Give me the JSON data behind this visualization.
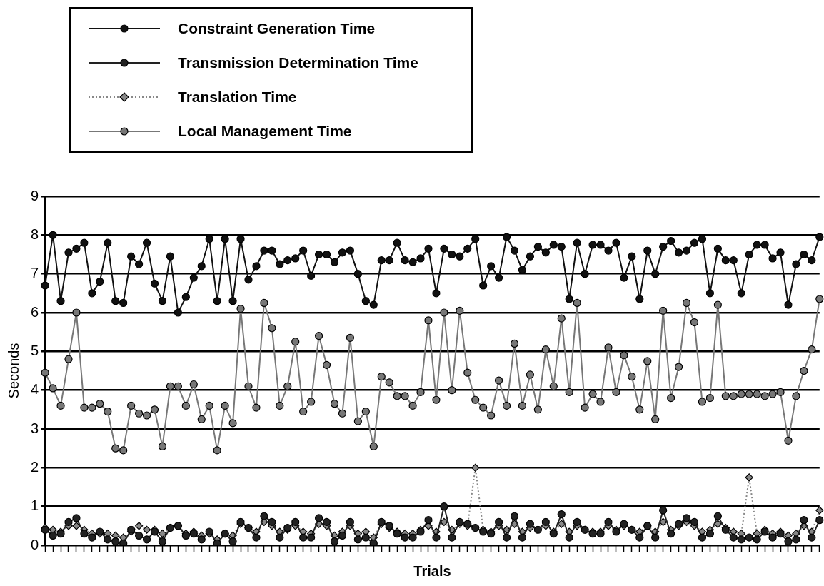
{
  "chart_data": {
    "type": "line",
    "xlabel": "Trials",
    "ylabel": "Seconds",
    "categories": [
      null,
      null,
      null,
      null,
      null,
      null,
      null,
      null,
      null,
      null,
      null,
      null,
      null,
      null,
      null,
      null,
      null,
      null,
      null,
      null,
      null,
      null,
      null,
      null,
      null,
      null,
      null,
      null,
      null,
      null,
      null,
      null,
      null,
      null,
      null,
      null,
      null,
      null,
      null,
      null,
      null,
      null,
      null,
      null,
      null,
      null,
      null,
      null,
      null,
      null,
      null,
      null,
      null,
      null,
      null,
      null,
      null,
      null,
      null,
      null,
      null,
      null,
      null,
      null,
      null,
      null,
      null,
      null,
      null,
      null,
      null,
      null,
      null,
      null,
      null,
      null,
      null,
      null,
      null,
      null,
      null,
      null,
      null,
      null,
      null,
      null,
      null,
      null,
      null,
      null,
      null,
      null,
      null,
      null,
      null,
      null,
      null,
      null,
      null,
      null
    ],
    "series": [
      {
        "name": "Constraint Generation Time",
        "color": "#111111",
        "marker": "circle",
        "line_style": "solid",
        "values": [
          6.7,
          8.0,
          6.3,
          7.55,
          7.65,
          7.8,
          6.5,
          6.8,
          7.8,
          6.3,
          6.25,
          7.45,
          7.25,
          7.8,
          6.75,
          6.3,
          7.45,
          6.0,
          6.4,
          6.9,
          7.2,
          7.9,
          6.3,
          7.9,
          6.3,
          7.9,
          6.85,
          7.2,
          7.6,
          7.6,
          7.25,
          7.35,
          7.4,
          7.6,
          6.95,
          7.5,
          7.5,
          7.3,
          7.55,
          7.6,
          7.0,
          6.3,
          6.2,
          7.35,
          7.35,
          7.8,
          7.35,
          7.3,
          7.4,
          7.65,
          6.5,
          7.65,
          7.5,
          7.45,
          7.65,
          7.9,
          6.7,
          7.2,
          6.9,
          7.95,
          7.6,
          7.1,
          7.45,
          7.7,
          7.55,
          7.75,
          7.7,
          6.35,
          7.8,
          7.0,
          7.75,
          7.75,
          7.6,
          7.8,
          6.9,
          7.45,
          6.35,
          7.6,
          7.0,
          7.7,
          7.85,
          7.55,
          7.6,
          7.8,
          7.9,
          6.5,
          7.65,
          7.35,
          7.35,
          6.5,
          7.5,
          7.75,
          7.75,
          7.4,
          7.55,
          6.2,
          7.25,
          7.5,
          7.35,
          7.95
        ]
      },
      {
        "name": "Transmission Determination Time",
        "color": "#222222",
        "marker": "circle",
        "line_style": "solid",
        "values": [
          0.4,
          0.25,
          0.3,
          0.6,
          0.7,
          0.3,
          0.2,
          0.35,
          0.15,
          0.1,
          0.05,
          0.4,
          0.25,
          0.15,
          0.35,
          0.1,
          0.45,
          0.5,
          0.25,
          0.3,
          0.15,
          0.35,
          0.05,
          0.3,
          0.1,
          0.6,
          0.45,
          0.2,
          0.75,
          0.6,
          0.2,
          0.45,
          0.6,
          0.2,
          0.2,
          0.7,
          0.6,
          0.1,
          0.25,
          0.6,
          0.15,
          0.2,
          0.05,
          0.6,
          0.5,
          0.3,
          0.2,
          0.2,
          0.35,
          0.65,
          0.2,
          1.0,
          0.2,
          0.6,
          0.55,
          0.45,
          0.35,
          0.3,
          0.6,
          0.2,
          0.75,
          0.2,
          0.55,
          0.4,
          0.6,
          0.3,
          0.8,
          0.2,
          0.6,
          0.4,
          0.3,
          0.3,
          0.6,
          0.35,
          0.55,
          0.4,
          0.2,
          0.5,
          0.2,
          0.9,
          0.3,
          0.55,
          0.7,
          0.6,
          0.2,
          0.3,
          0.75,
          0.4,
          0.2,
          0.15,
          0.2,
          0.15,
          0.35,
          0.2,
          0.3,
          0.1,
          0.15,
          0.65,
          0.2,
          0.65
        ]
      },
      {
        "name": "Translation Time",
        "color": "#888888",
        "marker": "diamond",
        "line_style": "dotted",
        "values": [
          0.45,
          0.4,
          0.35,
          0.5,
          0.5,
          0.4,
          0.3,
          0.3,
          0.3,
          0.25,
          0.2,
          0.35,
          0.5,
          0.4,
          0.4,
          0.3,
          0.45,
          0.5,
          0.3,
          0.35,
          0.25,
          0.3,
          0.15,
          0.3,
          0.25,
          0.55,
          0.45,
          0.35,
          0.6,
          0.5,
          0.35,
          0.4,
          0.5,
          0.35,
          0.3,
          0.55,
          0.5,
          0.25,
          0.35,
          0.5,
          0.3,
          0.35,
          0.2,
          0.55,
          0.45,
          0.35,
          0.3,
          0.3,
          0.4,
          0.5,
          0.35,
          0.6,
          0.4,
          0.55,
          0.5,
          2.0,
          0.4,
          0.35,
          0.5,
          0.4,
          0.55,
          0.35,
          0.45,
          0.4,
          0.5,
          0.35,
          0.55,
          0.35,
          0.5,
          0.4,
          0.35,
          0.35,
          0.5,
          0.4,
          0.5,
          0.4,
          0.35,
          0.5,
          0.35,
          0.6,
          0.4,
          0.5,
          0.6,
          0.5,
          0.35,
          0.4,
          0.55,
          0.45,
          0.35,
          0.3,
          1.75,
          0.3,
          0.4,
          0.3,
          0.35,
          0.25,
          0.3,
          0.5,
          0.35,
          0.9
        ]
      },
      {
        "name": "Local Management Time",
        "color": "#777777",
        "marker": "circle",
        "line_style": "solid",
        "values": [
          4.45,
          4.05,
          3.6,
          4.8,
          6.0,
          3.55,
          3.55,
          3.65,
          3.45,
          2.5,
          2.45,
          3.6,
          3.4,
          3.35,
          3.5,
          2.55,
          4.1,
          4.1,
          3.6,
          4.15,
          3.25,
          3.6,
          2.45,
          3.6,
          3.15,
          6.1,
          4.1,
          3.55,
          6.25,
          5.6,
          3.6,
          4.1,
          5.25,
          3.45,
          3.7,
          5.4,
          4.65,
          3.65,
          3.4,
          5.35,
          3.2,
          3.45,
          2.55,
          4.35,
          4.2,
          3.85,
          3.85,
          3.6,
          3.95,
          5.8,
          3.75,
          6.0,
          4.0,
          6.05,
          4.45,
          3.75,
          3.55,
          3.35,
          4.25,
          3.6,
          5.2,
          3.6,
          4.4,
          3.5,
          5.05,
          4.1,
          5.85,
          3.95,
          6.25,
          3.55,
          3.9,
          3.7,
          5.1,
          3.95,
          4.9,
          4.35,
          3.5,
          4.75,
          3.25,
          6.05,
          3.8,
          4.6,
          6.25,
          5.75,
          3.7,
          3.8,
          6.2,
          3.85,
          3.85,
          3.9,
          3.9,
          3.9,
          3.85,
          3.9,
          3.95,
          2.7,
          3.85,
          4.5,
          5.05,
          6.35
        ]
      }
    ],
    "ylim": [
      0,
      9
    ],
    "yticks": [
      0,
      1,
      2,
      3,
      4,
      5,
      6,
      7,
      8,
      9
    ],
    "grid": "y",
    "legend": "top left",
    "tick_labels": "y"
  }
}
